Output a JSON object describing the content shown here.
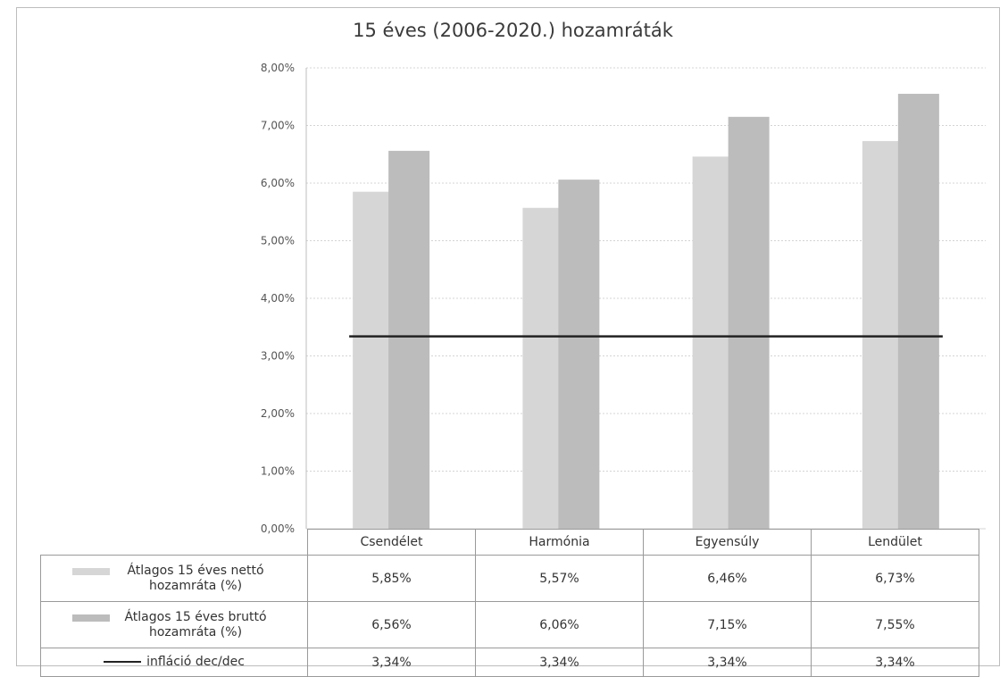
{
  "chart_data": {
    "type": "bar",
    "title": "15 éves (2006-2020.) hozamráták",
    "categories": [
      "Csendélet",
      "Harmónia",
      "Egyensúly",
      "Lendület"
    ],
    "series": [
      {
        "name": "Átlagos 15 éves nettó hozamráta (%)",
        "kind": "bar",
        "values": [
          5.85,
          5.57,
          6.46,
          6.73
        ],
        "labels": [
          "5,85%",
          "5,57%",
          "6,46%",
          "6,73%"
        ],
        "color": "#d6d6d6"
      },
      {
        "name": "Átlagos 15 éves bruttó hozamráta (%)",
        "kind": "bar",
        "values": [
          6.56,
          6.06,
          7.15,
          7.55
        ],
        "labels": [
          "6,56%",
          "6,06%",
          "7,15%",
          "7,55%"
        ],
        "color": "#bcbcbc"
      },
      {
        "name": "infláció dec/dec",
        "kind": "line",
        "values": [
          3.34,
          3.34,
          3.34,
          3.34
        ],
        "labels": [
          "3,34%",
          "3,34%",
          "3,34%",
          "3,34%"
        ],
        "color": "#222222"
      }
    ],
    "ylim": [
      0,
      8
    ],
    "yticks": [
      "0,00%",
      "1,00%",
      "2,00%",
      "3,00%",
      "4,00%",
      "5,00%",
      "6,00%",
      "7,00%",
      "8,00%"
    ],
    "grid": true,
    "legend": "data-table"
  }
}
